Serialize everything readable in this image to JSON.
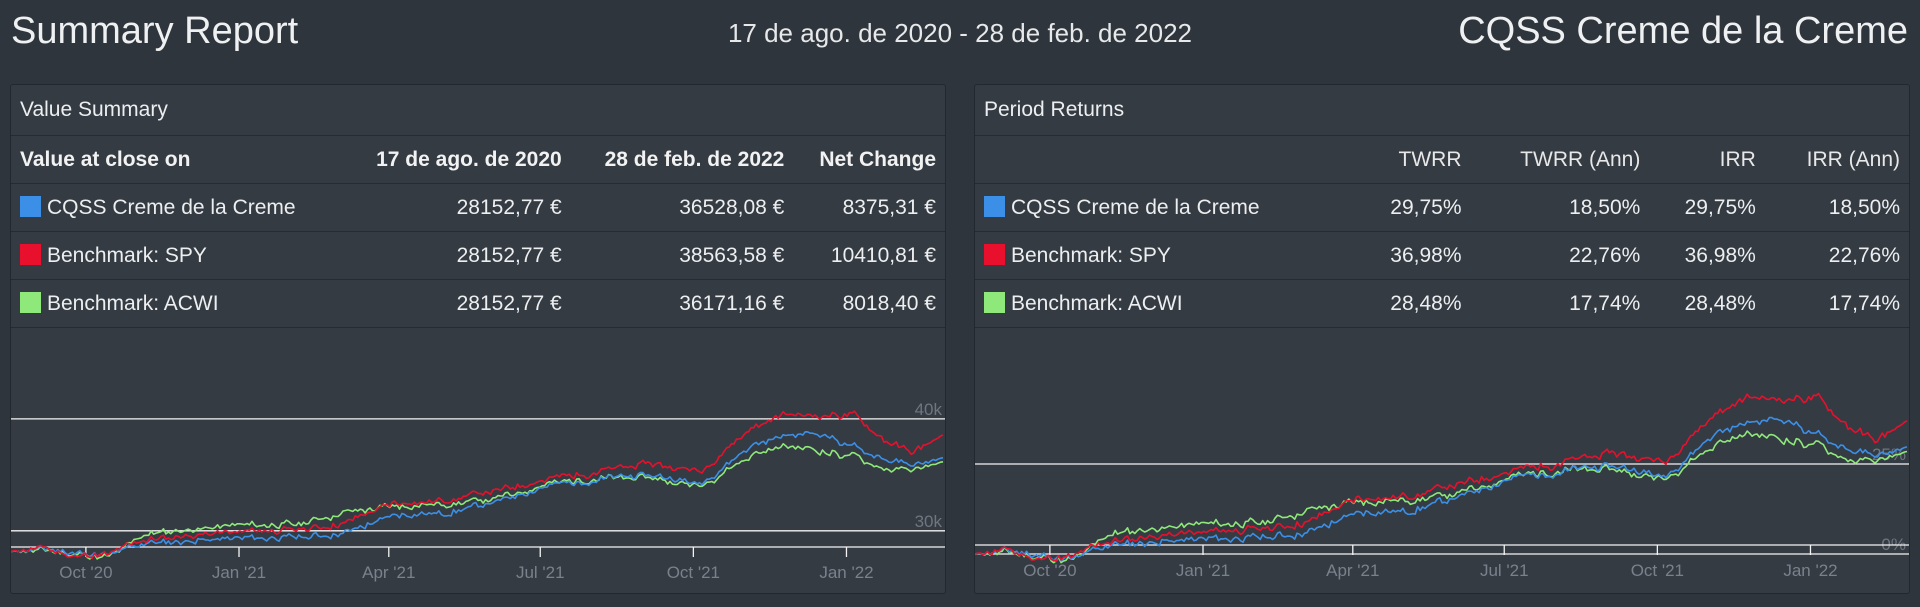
{
  "header": {
    "title": "Summary Report",
    "date_range": "17 de ago. de 2020 - 28 de feb. de 2022",
    "portfolio_name": "CQSS Creme de la Creme"
  },
  "colors": {
    "portfolio": "#3c8fe6",
    "spy": "#e8102c",
    "acwi": "#8ee87a"
  },
  "value_summary": {
    "title": "Value Summary",
    "columns": [
      "Value at close on",
      "17 de ago. de 2020",
      "28 de feb. de 2022",
      "Net Change"
    ],
    "rows": [
      {
        "name": "CQSS Creme de la Creme",
        "start": "28152,77 €",
        "end": "36528,08 €",
        "change": "8375,31 €"
      },
      {
        "name": "Benchmark: SPY",
        "start": "28152,77 €",
        "end": "38563,58 €",
        "change": "10410,81 €"
      },
      {
        "name": "Benchmark: ACWI",
        "start": "28152,77 €",
        "end": "36171,16 €",
        "change": "8018,40 €"
      }
    ]
  },
  "period_returns": {
    "title": "Period Returns",
    "columns": [
      "",
      "TWRR",
      "TWRR (Ann)",
      "IRR",
      "IRR (Ann)"
    ],
    "rows": [
      {
        "name": "CQSS Creme de la Creme",
        "twrr": "29,75%",
        "twrr_ann": "18,50%",
        "irr": "29,75%",
        "irr_ann": "18,50%"
      },
      {
        "name": "Benchmark: SPY",
        "twrr": "36,98%",
        "twrr_ann": "22,76%",
        "irr": "36,98%",
        "irr_ann": "22,76%"
      },
      {
        "name": "Benchmark: ACWI",
        "twrr": "28,48%",
        "twrr_ann": "17,74%",
        "irr": "28,48%",
        "irr_ann": "17,74%"
      }
    ]
  },
  "chart_data": [
    {
      "type": "line",
      "x_tick_labels": [
        "Oct '20",
        "Jan '21",
        "Apr '21",
        "Jul '21",
        "Oct '21",
        "Jan '22"
      ],
      "y_tick_labels": [
        "40k",
        "30k"
      ],
      "y_ticks": [
        40000,
        30000
      ],
      "ylim": [
        26500,
        41600
      ],
      "x_start": "2020-08-17",
      "x_end": "2022-02-28",
      "x_tick_dates": [
        "2020-10-01",
        "2021-01-01",
        "2021-04-01",
        "2021-07-01",
        "2021-10-01",
        "2022-01-01"
      ],
      "series": [
        {
          "key": "portfolio",
          "x": [
            "2020-08-17",
            "2020-09-05",
            "2020-09-25",
            "2020-10-15",
            "2020-11-05",
            "2020-12-01",
            "2021-01-01",
            "2021-02-05",
            "2021-03-05",
            "2021-04-05",
            "2021-05-05",
            "2021-06-05",
            "2021-07-05",
            "2021-08-05",
            "2021-09-05",
            "2021-10-05",
            "2021-11-05",
            "2021-11-25",
            "2021-12-15",
            "2022-01-05",
            "2022-01-25",
            "2022-02-10",
            "2022-02-28"
          ],
          "values": [
            28150,
            28400,
            28000,
            27800,
            28900,
            29100,
            29300,
            29400,
            29800,
            31400,
            31600,
            32600,
            34000,
            34600,
            35000,
            34200,
            37600,
            38500,
            38800,
            37500,
            36400,
            35800,
            36530
          ]
        },
        {
          "key": "spy",
          "x": [
            "2020-08-17",
            "2020-09-05",
            "2020-09-25",
            "2020-10-15",
            "2020-11-05",
            "2020-12-01",
            "2021-01-01",
            "2021-02-05",
            "2021-03-05",
            "2021-04-05",
            "2021-05-05",
            "2021-06-05",
            "2021-07-05",
            "2021-08-05",
            "2021-09-05",
            "2021-10-05",
            "2021-11-05",
            "2021-11-25",
            "2021-12-15",
            "2022-01-05",
            "2022-01-25",
            "2022-02-10",
            "2022-02-28"
          ],
          "values": [
            28150,
            28500,
            27700,
            27900,
            29200,
            29600,
            29900,
            30100,
            30700,
            32500,
            32700,
            33600,
            34600,
            35300,
            36000,
            35300,
            39200,
            40400,
            40300,
            40400,
            38000,
            37000,
            38560
          ]
        },
        {
          "key": "acwi",
          "x": [
            "2020-08-17",
            "2020-09-05",
            "2020-09-25",
            "2020-10-15",
            "2020-11-05",
            "2020-12-01",
            "2021-01-01",
            "2021-02-05",
            "2021-03-05",
            "2021-04-05",
            "2021-05-05",
            "2021-06-05",
            "2021-07-05",
            "2021-08-05",
            "2021-09-05",
            "2021-10-05",
            "2021-11-05",
            "2021-11-25",
            "2021-12-15",
            "2022-01-05",
            "2022-01-25",
            "2022-02-10",
            "2022-02-28"
          ],
          "values": [
            28150,
            28300,
            27900,
            27600,
            29700,
            30100,
            30500,
            30600,
            31600,
            32200,
            32400,
            32900,
            34200,
            34700,
            34700,
            34000,
            36800,
            37600,
            37200,
            36600,
            35500,
            35400,
            36170
          ]
        }
      ]
    },
    {
      "type": "line",
      "x_tick_labels": [
        "Oct '20",
        "Jan '21",
        "Apr '21",
        "Jul '21",
        "Oct '21",
        "Jan '22"
      ],
      "y_tick_labels": [
        "25%",
        "0%"
      ],
      "y_ticks": [
        25,
        0
      ],
      "ylim": [
        -5,
        50
      ],
      "x_start": "2020-08-17",
      "x_end": "2022-02-28",
      "x_tick_dates": [
        "2020-10-01",
        "2021-01-01",
        "2021-04-01",
        "2021-07-01",
        "2021-10-01",
        "2022-01-01"
      ],
      "series": [
        {
          "key": "portfolio",
          "x": [
            "2020-08-17",
            "2020-09-05",
            "2020-09-25",
            "2020-10-15",
            "2020-11-05",
            "2020-12-01",
            "2021-01-01",
            "2021-02-05",
            "2021-03-05",
            "2021-04-05",
            "2021-05-05",
            "2021-06-05",
            "2021-07-05",
            "2021-08-05",
            "2021-09-05",
            "2021-10-05",
            "2021-11-05",
            "2021-11-25",
            "2021-12-15",
            "2022-01-05",
            "2022-01-25",
            "2022-02-10",
            "2022-02-28"
          ],
          "values": [
            0,
            1,
            -0.5,
            -1.5,
            2.5,
            3.3,
            4,
            4.5,
            6,
            11.5,
            12,
            16,
            21,
            23,
            24.5,
            21.5,
            33.5,
            36.5,
            37.8,
            33,
            29,
            27,
            29.75
          ]
        },
        {
          "key": "spy",
          "x": [
            "2020-08-17",
            "2020-09-05",
            "2020-09-25",
            "2020-10-15",
            "2020-11-05",
            "2020-12-01",
            "2021-01-01",
            "2021-02-05",
            "2021-03-05",
            "2021-04-05",
            "2021-05-05",
            "2021-06-05",
            "2021-07-05",
            "2021-08-05",
            "2021-09-05",
            "2021-10-05",
            "2021-11-05",
            "2021-11-25",
            "2021-12-15",
            "2022-01-05",
            "2022-01-25",
            "2022-02-10",
            "2022-02-28"
          ],
          "values": [
            0,
            1.2,
            -1.5,
            -0.8,
            3.5,
            5,
            6,
            7,
            9,
            15.5,
            16,
            19.5,
            23,
            25.5,
            28,
            25.5,
            39,
            43.5,
            43,
            43.5,
            35,
            31.5,
            36.98
          ]
        },
        {
          "key": "acwi",
          "x": [
            "2020-08-17",
            "2020-09-05",
            "2020-09-25",
            "2020-10-15",
            "2020-11-05",
            "2020-12-01",
            "2021-01-01",
            "2021-02-05",
            "2021-03-05",
            "2021-04-05",
            "2021-05-05",
            "2021-06-05",
            "2021-07-05",
            "2021-08-05",
            "2021-09-05",
            "2021-10-05",
            "2021-11-05",
            "2021-11-25",
            "2021-12-15",
            "2022-01-05",
            "2022-01-25",
            "2022-02-10",
            "2022-02-28"
          ],
          "values": [
            0,
            0.6,
            -0.9,
            -2,
            5.5,
            7,
            8.3,
            8.7,
            12,
            14.5,
            15,
            17,
            21.5,
            23.3,
            23.3,
            20.8,
            30.6,
            33.5,
            32,
            30,
            26,
            25.7,
            28.48
          ]
        }
      ]
    }
  ]
}
